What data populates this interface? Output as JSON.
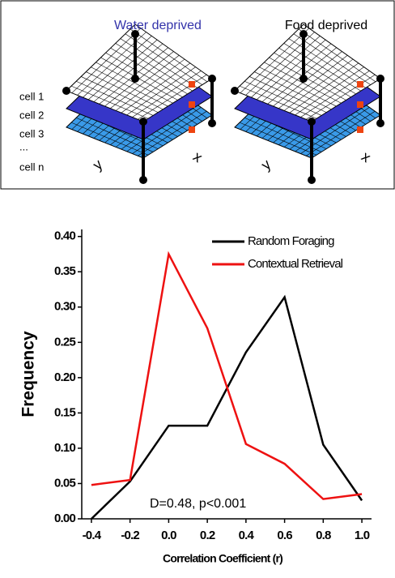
{
  "diagram": {
    "panels": [
      "Water deprived",
      "Food deprived"
    ],
    "cells": [
      "cell 1",
      "cell 2",
      "cell 3",
      "...",
      "cell n"
    ],
    "axes": [
      "y",
      "x"
    ]
  },
  "chart_data": {
    "type": "line",
    "x": [
      -0.4,
      -0.2,
      0.0,
      0.2,
      0.4,
      0.6,
      0.8,
      1.0
    ],
    "series": [
      {
        "name": "Random Foraging",
        "color": "#000000",
        "values": [
          0.0,
          0.053,
          0.132,
          0.132,
          0.236,
          0.314,
          0.105,
          0.026
        ]
      },
      {
        "name": "Contextual Retrieval",
        "color": "#ee1111",
        "values": [
          0.048,
          0.055,
          0.375,
          0.27,
          0.106,
          0.078,
          0.028,
          0.035
        ]
      }
    ],
    "xlim": [
      -0.45,
      1.05
    ],
    "ylim": [
      0,
      0.41
    ],
    "xticks": [
      -0.4,
      -0.2,
      {
        "value": 0,
        "label": "0.0"
      },
      0.2,
      0.4,
      0.6,
      0.8,
      {
        "value": 1,
        "label": "1.0"
      }
    ],
    "yticks": [
      {
        "value": 0,
        "label": "0.00"
      },
      0.05,
      {
        "value": 0.1,
        "label": "0.10"
      },
      0.15,
      {
        "value": 0.2,
        "label": "0.20"
      },
      0.25,
      {
        "value": 0.3,
        "label": "0.30"
      },
      0.35,
      {
        "value": 0.4,
        "label": "0.40"
      }
    ],
    "xlabel": "Correlation Coefficient (r)",
    "ylabel": "Frequency",
    "annotation": "D=0.48, p<0.001",
    "legend": "upper right"
  }
}
